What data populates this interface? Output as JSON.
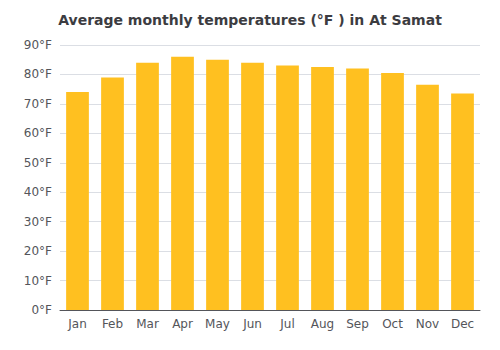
{
  "chart_data": {
    "type": "bar",
    "title": "Average monthly temperatures (°F ) in At Samat",
    "categories": [
      "Jan",
      "Feb",
      "Mar",
      "Apr",
      "May",
      "Jun",
      "Jul",
      "Aug",
      "Sep",
      "Oct",
      "Nov",
      "Dec"
    ],
    "values": [
      74,
      79,
      84,
      86,
      85,
      84,
      83,
      82.5,
      82,
      80.5,
      76.5,
      73.5
    ],
    "color": "#FFC020",
    "ylim": [
      0,
      90
    ],
    "yticks": [
      {
        "value": 0,
        "label": "0°F"
      },
      {
        "value": 10,
        "label": "10°F"
      },
      {
        "value": 20,
        "label": "20°F"
      },
      {
        "value": 30,
        "label": "30°F"
      },
      {
        "value": 40,
        "label": "40°F"
      },
      {
        "value": 50,
        "label": "50°F"
      },
      {
        "value": 60,
        "label": "60°F"
      },
      {
        "value": 70,
        "label": "70°F"
      },
      {
        "value": 80,
        "label": "80°F"
      },
      {
        "value": 90,
        "label": "90°F"
      }
    ],
    "grid": true
  }
}
